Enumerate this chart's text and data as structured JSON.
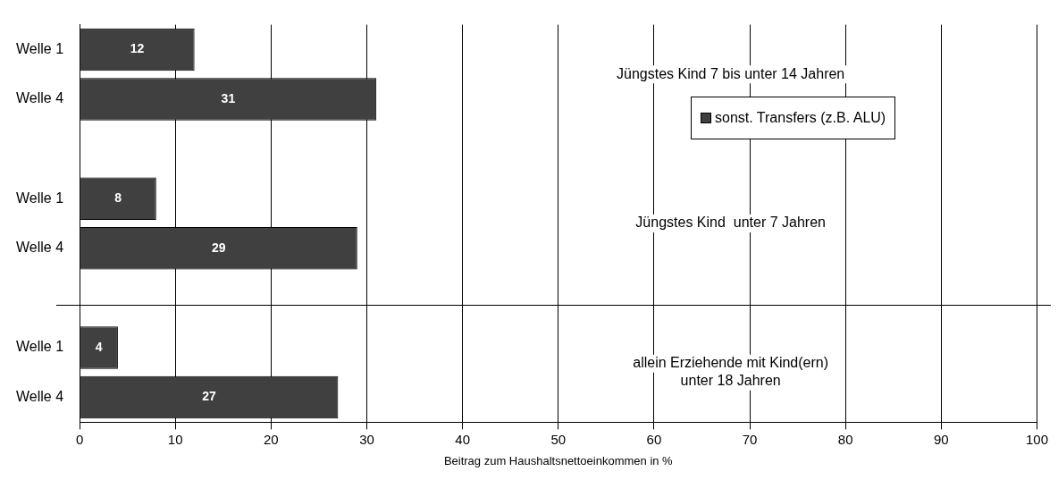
{
  "chart_data": {
    "type": "bar",
    "orientation": "horizontal",
    "categories": [
      "Welle 1",
      "Welle 4",
      null,
      "Welle 1",
      "Welle 4",
      null,
      "Welle 1",
      "Welle 4"
    ],
    "series": [
      {
        "name": "sonst. Transfers (z.B. ALU)",
        "color": "#404040",
        "values": [
          12,
          31,
          null,
          8,
          29,
          null,
          4,
          27
        ]
      }
    ],
    "xlabel": "Beitrag zum Haushaltsnettoeinkommen in %",
    "xlim": [
      0,
      100
    ],
    "xticks": [
      0,
      10,
      20,
      30,
      40,
      50,
      60,
      70,
      80,
      90,
      100
    ],
    "annotations": [
      "Jüngstes Kind 7 bis unter 14 Jahren",
      "Jüngstes Kind  unter 7 Jahren",
      "allein Erziehende mit Kind(ern)\nunter 18 Jahren"
    ],
    "grid": "x",
    "legend": "top right",
    "data_labels": true
  }
}
